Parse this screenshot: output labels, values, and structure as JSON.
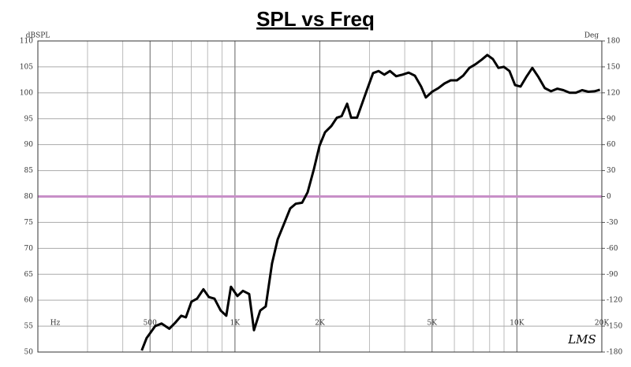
{
  "chart_data": {
    "type": "line",
    "title": "SPL vs Freq",
    "y_label": "dBSPL",
    "y2_label": "Deg",
    "x_label": "Hz",
    "annotation": "LMS",
    "log_x": true,
    "grid": true,
    "xlim": [
      200,
      20000
    ],
    "xticks": [
      {
        "value": 500,
        "label": "500"
      },
      {
        "value": 1000,
        "label": "1K"
      },
      {
        "value": 2000,
        "label": "2K"
      },
      {
        "value": 5000,
        "label": "5K"
      },
      {
        "value": 10000,
        "label": "10K"
      },
      {
        "value": 20000,
        "label": "20K"
      }
    ],
    "ylim": [
      50,
      110
    ],
    "yticks": [
      50,
      55,
      60,
      65,
      70,
      75,
      80,
      85,
      90,
      95,
      100,
      105,
      110
    ],
    "y2lim": [
      -180,
      180
    ],
    "y2ticks": [
      -180,
      -150,
      -120,
      -90,
      -60,
      -30,
      0,
      30,
      60,
      90,
      120,
      150,
      180
    ],
    "reference_line": {
      "value": 80,
      "color": "#c88fc8"
    },
    "x": [
      467,
      486,
      521,
      549,
      585,
      613,
      645,
      670,
      701,
      734,
      773,
      808,
      846,
      890,
      932,
      968,
      1020,
      1067,
      1123,
      1168,
      1229,
      1286,
      1354,
      1417,
      1492,
      1571,
      1643,
      1730,
      1810,
      1906,
      1995,
      2087,
      2197,
      2298,
      2389,
      2499,
      2583,
      2710,
      2935,
      3089,
      3234,
      3386,
      3545,
      3730,
      3926,
      4131,
      4346,
      4574,
      4752,
      5000,
      5261,
      5534,
      5823,
      6126,
      6445,
      6781,
      7134,
      7506,
      7852,
      8215,
      8595,
      8993,
      9410,
      9846,
      10301,
      10778,
      11340,
      11931,
      12553,
      13207,
      13895,
      14619,
      15381,
      16182,
      17026,
      17913,
      18847,
      19693
    ],
    "series": [
      {
        "color": "#000000",
        "values": [
          50.3,
          52.7,
          55,
          55.5,
          54.5,
          55.6,
          57,
          56.7,
          59.7,
          60.3,
          62.1,
          60.6,
          60.3,
          58,
          57,
          62.6,
          60.8,
          61.8,
          61.2,
          54.2,
          58,
          58.8,
          67.1,
          71.7,
          74.7,
          77.7,
          78.6,
          78.8,
          80.8,
          85.3,
          89.8,
          92.4,
          93.6,
          95.2,
          95.5,
          97.9,
          95.2,
          95.2,
          100.5,
          103.8,
          104.2,
          103.5,
          104.2,
          103.2,
          103.5,
          103.9,
          103.3,
          101.2,
          99.1,
          100.2,
          100.9,
          101.8,
          102.4,
          102.4,
          103.3,
          104.8,
          105.5,
          106.4,
          107.3,
          106.5,
          104.8,
          105,
          104.2,
          101.5,
          101.2,
          103,
          104.8,
          103,
          100.9,
          100.3,
          100.8,
          100.5,
          100,
          100,
          100.5,
          100.2,
          100.3,
          100.6
        ]
      }
    ]
  }
}
